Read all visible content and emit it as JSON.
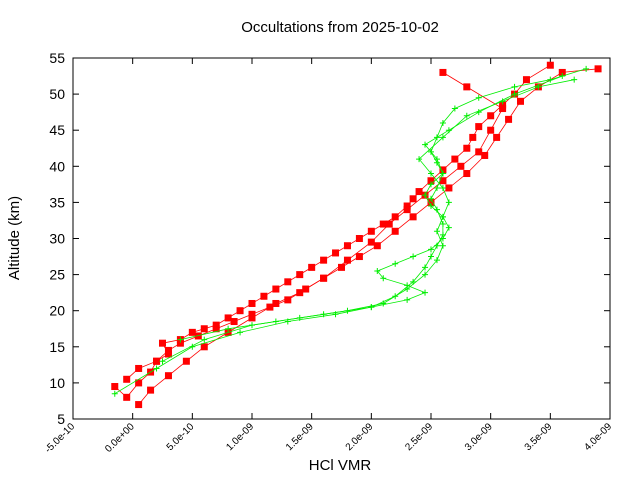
{
  "chart_data": {
    "type": "scatter",
    "title": "Occultations from 2025-10-02",
    "xlabel": "HCl VMR",
    "ylabel": "Altitude (km)",
    "xlim": [
      -5e-10,
      4e-09
    ],
    "ylim": [
      5,
      55
    ],
    "xticks": [
      {
        "value": -5e-10,
        "label": "-5.0e-10"
      },
      {
        "value": 0,
        "label": "0.0e+00"
      },
      {
        "value": 5e-10,
        "label": "5.0e-10"
      },
      {
        "value": 1e-09,
        "label": "1.0e-09"
      },
      {
        "value": 1.5e-09,
        "label": "1.5e-09"
      },
      {
        "value": 2e-09,
        "label": "2.0e-09"
      },
      {
        "value": 2.5e-09,
        "label": "2.5e-09"
      },
      {
        "value": 3e-09,
        "label": "3.0e-09"
      },
      {
        "value": 3.5e-09,
        "label": "3.5e-09"
      },
      {
        "value": 4e-09,
        "label": "4.0e-09"
      }
    ],
    "yticks": [
      {
        "value": 5,
        "label": "5"
      },
      {
        "value": 10,
        "label": "10"
      },
      {
        "value": 15,
        "label": "15"
      },
      {
        "value": 20,
        "label": "20"
      },
      {
        "value": 25,
        "label": "25"
      },
      {
        "value": 30,
        "label": "30"
      },
      {
        "value": 35,
        "label": "35"
      },
      {
        "value": 40,
        "label": "40"
      },
      {
        "value": 45,
        "label": "45"
      },
      {
        "value": 50,
        "label": "50"
      },
      {
        "value": 55,
        "label": "55"
      }
    ],
    "grid": false,
    "legend": "none",
    "series": [
      {
        "marker": "square",
        "color": "#ff0000",
        "x": [
          -1.5e-10,
          -5e-11,
          5e-11,
          1.5e-10,
          2e-10,
          3e-10,
          2.5e-10,
          4e-10,
          5e-10,
          6e-10,
          7e-10,
          8e-10,
          9e-10,
          1e-09,
          1.1e-09,
          1.2e-09,
          1.3e-09,
          1.4e-09,
          1.5e-09,
          1.6e-09,
          1.7e-09,
          1.8e-09,
          1.9e-09,
          2e-09,
          2.1e-09,
          2.2e-09,
          2.3e-09,
          2.35e-09,
          2.4e-09,
          2.5e-09,
          2.6e-09,
          2.7e-09,
          2.8e-09,
          2.85e-09,
          2.9e-09,
          3e-09,
          3.1e-09,
          3.2e-09,
          3.3e-09,
          3.5e-09
        ],
        "y": [
          9.5,
          8,
          10,
          11.5,
          13,
          14,
          15.5,
          16,
          17,
          17.5,
          18,
          19,
          20,
          21,
          22,
          23,
          24,
          25,
          26,
          27,
          28,
          29,
          30,
          31,
          32,
          33,
          34.5,
          35.5,
          36.5,
          38,
          39.5,
          41,
          42.5,
          44,
          45.5,
          47,
          48.5,
          50,
          52,
          54
        ]
      },
      {
        "marker": "square",
        "color": "#ff0000",
        "x": [
          -5e-11,
          5e-11,
          2e-10,
          3e-10,
          4e-10,
          5.5e-10,
          7e-10,
          8.5e-10,
          1e-09,
          1.15e-09,
          1.3e-09,
          1.45e-09,
          1.6e-09,
          1.75e-09,
          1.9e-09,
          2.05e-09,
          2.2e-09,
          2.35e-09,
          2.5e-09,
          2.65e-09,
          2.8e-09,
          2.95e-09,
          3.05e-09,
          3.15e-09,
          3.25e-09,
          3.4e-09,
          3.6e-09,
          3.9e-09
        ],
        "y": [
          10.5,
          12,
          13,
          14.5,
          15.5,
          16.5,
          17.5,
          18.5,
          19.5,
          20.5,
          21.5,
          23,
          24.5,
          26,
          27.5,
          29,
          31,
          33,
          35,
          37,
          39,
          41.5,
          44,
          46.5,
          49,
          51,
          53,
          53.5
        ]
      },
      {
        "marker": "square",
        "color": "#ff0000",
        "x": [
          5e-11,
          1.5e-10,
          3e-10,
          4.5e-10,
          6e-10,
          8e-10,
          1e-09,
          1.2e-09,
          1.4e-09,
          1.6e-09,
          1.8e-09,
          2e-09,
          2.15e-09,
          2.3e-09,
          2.45e-09,
          2.6e-09,
          2.75e-09,
          2.9e-09,
          3e-09,
          3.1e-09,
          2.8e-09,
          2.6e-09
        ],
        "y": [
          7,
          9,
          11,
          13,
          15,
          17,
          19,
          21,
          22.5,
          24.5,
          27,
          29.5,
          32,
          34,
          36,
          38,
          40,
          42,
          45,
          48,
          51,
          53
        ]
      },
      {
        "marker": "plus",
        "color": "#00ee00",
        "x": [
          -1.5e-10,
          2e-10,
          5e-10,
          9e-10,
          1.3e-09,
          1.7e-09,
          2e-09,
          2.2e-09,
          2.35e-09,
          2.45e-09,
          2.5e-09,
          2.55e-09,
          2.6e-09,
          2.6e-09,
          2.55e-09,
          2.5e-09,
          2.55e-09,
          2.6e-09,
          2.55e-09,
          2.5e-09,
          2.55e-09,
          2.6e-09,
          2.7e-09,
          2.9e-09,
          3.2e-09,
          3.5e-09,
          3.8e-09
        ],
        "y": [
          8.5,
          12,
          15,
          17,
          18.5,
          19.5,
          20.5,
          22,
          24,
          26,
          27.5,
          29,
          30.5,
          32,
          34,
          35.5,
          37,
          39,
          40.5,
          42,
          44,
          46,
          48,
          49.5,
          51,
          52,
          53.5
        ]
      },
      {
        "marker": "plus",
        "color": "#00ee00",
        "x": [
          4e-10,
          8e-10,
          1.2e-09,
          1.6e-09,
          2e-09,
          2.3e-09,
          2.45e-09,
          2.3e-09,
          2.1e-09,
          2.05e-09,
          2.2e-09,
          2.35e-09,
          2.5e-09,
          2.6e-09,
          2.65e-09,
          2.6e-09,
          2.5e-09,
          2.45e-09,
          2.5e-09,
          2.6e-09,
          2.55e-09,
          2.45e-09,
          2.65e-09,
          2.9e-09,
          3.2e-09,
          3.6e-09
        ],
        "y": [
          16,
          17.5,
          18.5,
          19.5,
          20.5,
          21.5,
          22.5,
          23.5,
          24.5,
          25.5,
          26.5,
          27.5,
          28.5,
          30,
          31.5,
          33,
          34.5,
          36,
          37.5,
          39,
          41,
          43,
          45,
          47.5,
          50,
          52.5
        ]
      },
      {
        "marker": "plus",
        "color": "#00ee00",
        "x": [
          2.5e-10,
          6e-10,
          1e-09,
          1.4e-09,
          1.8e-09,
          2.1e-09,
          2.3e-09,
          2.45e-09,
          2.55e-09,
          2.6e-09,
          2.55e-09,
          2.6e-09,
          2.65e-09,
          2.6e-09,
          2.5e-09,
          2.4e-09,
          2.6e-09,
          2.8e-09,
          3.1e-09,
          3.4e-09,
          3.7e-09
        ],
        "y": [
          13,
          16,
          18,
          19,
          20,
          21,
          23,
          25,
          27,
          29,
          31,
          33,
          35,
          37,
          39,
          41,
          44,
          47,
          49,
          51,
          52
        ]
      }
    ]
  }
}
